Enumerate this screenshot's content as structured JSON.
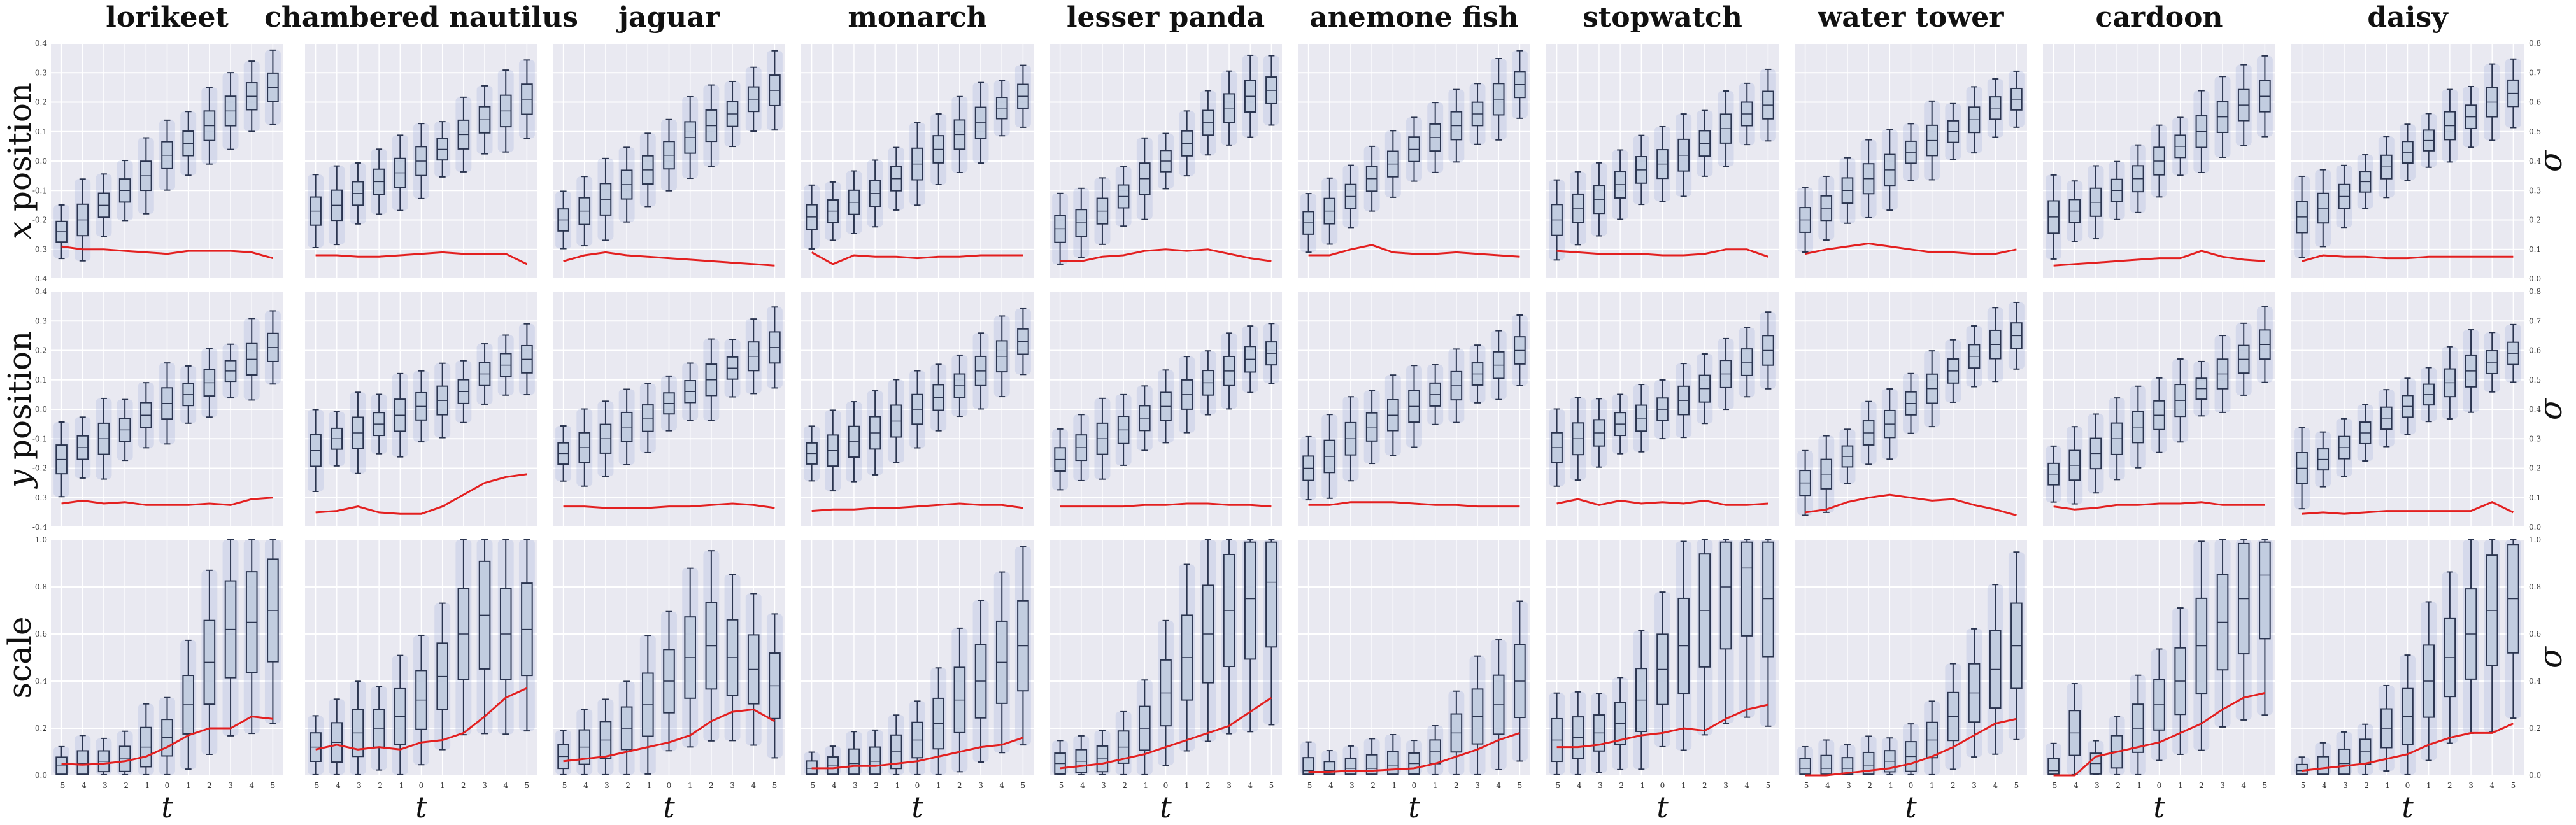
{
  "chart_data": {
    "type": "box",
    "columns": [
      "lorikeet",
      "chambered nautilus",
      "jaguar",
      "monarch",
      "lesser panda",
      "anemone fish",
      "stopwatch",
      "water tower",
      "cardoon",
      "daisy"
    ],
    "row_labels": [
      "x position",
      "y position",
      "scale"
    ],
    "row_label_italic": [
      "x",
      "y",
      ""
    ],
    "xlabel": "t",
    "x": [
      -5,
      -4,
      -3,
      -2,
      -1,
      0,
      1,
      2,
      3,
      4,
      5
    ],
    "right_axis_label": "σ",
    "rows": [
      {
        "name": "x position",
        "ylim": [
          -0.4,
          0.4
        ],
        "yticks": [
          -0.4,
          -0.3,
          -0.2,
          -0.1,
          0.0,
          0.1,
          0.2,
          0.3,
          0.4
        ],
        "sigma_lim": [
          0.0,
          0.8
        ],
        "sigma_ticks": [
          0.0,
          0.1,
          0.2,
          0.3,
          0.4,
          0.5,
          0.6,
          0.7,
          0.8
        ],
        "medians": [
          [
            -0.24,
            -0.2,
            -0.15,
            -0.1,
            -0.05,
            0.02,
            0.06,
            0.12,
            0.17,
            0.22,
            0.25
          ],
          [
            -0.17,
            -0.15,
            -0.11,
            -0.07,
            -0.04,
            0.0,
            0.04,
            0.09,
            0.14,
            0.17,
            0.21
          ],
          [
            -0.2,
            -0.17,
            -0.13,
            -0.08,
            -0.03,
            0.02,
            0.08,
            0.12,
            0.16,
            0.21,
            0.24
          ],
          [
            -0.19,
            -0.17,
            -0.14,
            -0.11,
            -0.06,
            -0.01,
            0.04,
            0.09,
            0.13,
            0.18,
            0.22
          ],
          [
            -0.23,
            -0.21,
            -0.17,
            -0.12,
            -0.06,
            0.0,
            0.06,
            0.13,
            0.18,
            0.22,
            0.24
          ],
          [
            -0.21,
            -0.17,
            -0.12,
            -0.06,
            -0.01,
            0.04,
            0.08,
            0.12,
            0.16,
            0.21,
            0.26
          ],
          [
            -0.2,
            -0.16,
            -0.13,
            -0.08,
            -0.03,
            -0.01,
            0.02,
            0.06,
            0.11,
            0.16,
            0.19
          ],
          [
            -0.2,
            -0.16,
            -0.1,
            -0.06,
            -0.03,
            0.03,
            0.07,
            0.1,
            0.14,
            0.18,
            0.21
          ],
          [
            -0.19,
            -0.17,
            -0.14,
            -0.1,
            -0.06,
            0.0,
            0.05,
            0.1,
            0.15,
            0.19,
            0.22
          ],
          [
            -0.19,
            -0.16,
            -0.12,
            -0.07,
            -0.02,
            0.03,
            0.07,
            0.12,
            0.15,
            0.2,
            0.23
          ]
        ],
        "sigma": [
          [
            0.11,
            0.1,
            0.1,
            0.095,
            0.09,
            0.085,
            0.095,
            0.095,
            0.095,
            0.09,
            0.07
          ],
          [
            0.08,
            0.08,
            0.075,
            0.075,
            0.08,
            0.085,
            0.09,
            0.085,
            0.085,
            0.085,
            0.05
          ],
          [
            0.06,
            0.08,
            0.09,
            0.08,
            0.075,
            0.07,
            0.065,
            0.06,
            0.055,
            0.05,
            0.045
          ],
          [
            0.09,
            0.05,
            0.08,
            0.075,
            0.075,
            0.07,
            0.075,
            0.075,
            0.08,
            0.08,
            0.08
          ],
          [
            0.06,
            0.06,
            0.075,
            0.08,
            0.095,
            0.1,
            0.095,
            0.1,
            0.085,
            0.07,
            0.06
          ],
          [
            0.08,
            0.08,
            0.1,
            0.115,
            0.09,
            0.085,
            0.085,
            0.09,
            0.085,
            0.08,
            0.075
          ],
          [
            0.095,
            0.09,
            0.085,
            0.085,
            0.085,
            0.08,
            0.08,
            0.085,
            0.1,
            0.1,
            0.075
          ],
          [
            0.085,
            0.1,
            0.11,
            0.12,
            0.11,
            0.1,
            0.09,
            0.09,
            0.085,
            0.085,
            0.1
          ],
          [
            0.045,
            0.05,
            0.055,
            0.06,
            0.065,
            0.07,
            0.07,
            0.095,
            0.075,
            0.065,
            0.06
          ],
          [
            0.06,
            0.08,
            0.075,
            0.075,
            0.07,
            0.07,
            0.075,
            0.075,
            0.075,
            0.075,
            0.075
          ]
        ]
      },
      {
        "name": "y position",
        "ylim": [
          -0.4,
          0.4
        ],
        "yticks": [
          -0.4,
          -0.3,
          -0.2,
          -0.1,
          0.0,
          0.1,
          0.2,
          0.3,
          0.4
        ],
        "sigma_lim": [
          0.0,
          0.8
        ],
        "sigma_ticks": [
          0.0,
          0.1,
          0.2,
          0.3,
          0.4,
          0.5,
          0.6,
          0.7,
          0.8
        ],
        "medians": [
          [
            -0.17,
            -0.13,
            -0.1,
            -0.07,
            -0.02,
            0.02,
            0.05,
            0.09,
            0.13,
            0.17,
            0.21
          ],
          [
            -0.14,
            -0.1,
            -0.08,
            -0.05,
            -0.02,
            0.01,
            0.03,
            0.06,
            0.12,
            0.15,
            0.17
          ],
          [
            -0.15,
            -0.13,
            -0.1,
            -0.06,
            -0.03,
            0.02,
            0.06,
            0.1,
            0.14,
            0.18,
            0.21
          ],
          [
            -0.15,
            -0.14,
            -0.11,
            -0.08,
            -0.04,
            0.0,
            0.04,
            0.08,
            0.13,
            0.18,
            0.23
          ],
          [
            -0.17,
            -0.13,
            -0.1,
            -0.07,
            -0.03,
            0.01,
            0.05,
            0.09,
            0.13,
            0.17,
            0.19
          ],
          [
            -0.2,
            -0.16,
            -0.1,
            -0.06,
            -0.02,
            0.01,
            0.05,
            0.08,
            0.12,
            0.15,
            0.2
          ],
          [
            -0.13,
            -0.1,
            -0.08,
            -0.05,
            -0.03,
            0.0,
            0.03,
            0.07,
            0.12,
            0.16,
            0.2
          ],
          [
            -0.25,
            -0.22,
            -0.16,
            -0.08,
            -0.05,
            0.02,
            0.07,
            0.13,
            0.18,
            0.22,
            0.25
          ],
          [
            -0.22,
            -0.19,
            -0.15,
            -0.1,
            -0.06,
            -0.02,
            0.03,
            0.07,
            0.12,
            0.17,
            0.22
          ],
          [
            -0.2,
            -0.17,
            -0.13,
            -0.08,
            -0.03,
            0.01,
            0.05,
            0.09,
            0.13,
            0.16,
            0.19
          ]
        ],
        "sigma": [
          [
            0.08,
            0.09,
            0.08,
            0.085,
            0.075,
            0.075,
            0.075,
            0.08,
            0.075,
            0.095,
            0.1
          ],
          [
            0.05,
            0.055,
            0.07,
            0.05,
            0.045,
            0.045,
            0.07,
            0.11,
            0.15,
            0.17,
            0.18
          ],
          [
            0.07,
            0.07,
            0.065,
            0.065,
            0.065,
            0.07,
            0.07,
            0.075,
            0.08,
            0.075,
            0.065
          ],
          [
            0.055,
            0.06,
            0.06,
            0.065,
            0.065,
            0.07,
            0.075,
            0.08,
            0.075,
            0.075,
            0.065
          ],
          [
            0.07,
            0.07,
            0.07,
            0.07,
            0.075,
            0.075,
            0.08,
            0.08,
            0.075,
            0.075,
            0.07
          ],
          [
            0.075,
            0.075,
            0.085,
            0.085,
            0.085,
            0.08,
            0.075,
            0.075,
            0.07,
            0.07,
            0.07
          ],
          [
            0.08,
            0.095,
            0.075,
            0.09,
            0.08,
            0.085,
            0.08,
            0.09,
            0.075,
            0.075,
            0.08
          ],
          [
            0.05,
            0.06,
            0.085,
            0.1,
            0.11,
            0.1,
            0.09,
            0.095,
            0.075,
            0.06,
            0.04
          ],
          [
            0.07,
            0.06,
            0.065,
            0.075,
            0.075,
            0.08,
            0.08,
            0.085,
            0.075,
            0.075,
            0.075
          ],
          [
            0.045,
            0.05,
            0.045,
            0.05,
            0.055,
            0.055,
            0.055,
            0.055,
            0.055,
            0.085,
            0.05
          ]
        ]
      },
      {
        "name": "scale",
        "ylim": [
          0.0,
          1.0
        ],
        "yticks": [
          0.0,
          0.2,
          0.4,
          0.6,
          0.8,
          1.0
        ],
        "sigma_lim": [
          0.0,
          1.0
        ],
        "sigma_ticks": [
          0.0,
          0.2,
          0.4,
          0.6,
          0.8,
          1.0
        ],
        "medians": [
          [
            0.04,
            0.05,
            0.06,
            0.07,
            0.12,
            0.16,
            0.3,
            0.48,
            0.62,
            0.65,
            0.7
          ],
          [
            0.12,
            0.14,
            0.18,
            0.2,
            0.25,
            0.32,
            0.42,
            0.6,
            0.68,
            0.6,
            0.62
          ],
          [
            0.08,
            0.12,
            0.15,
            0.2,
            0.3,
            0.4,
            0.5,
            0.55,
            0.5,
            0.45,
            0.38
          ],
          [
            0.03,
            0.04,
            0.05,
            0.06,
            0.1,
            0.15,
            0.22,
            0.32,
            0.4,
            0.48,
            0.55
          ],
          [
            0.05,
            0.06,
            0.07,
            0.12,
            0.2,
            0.35,
            0.5,
            0.6,
            0.7,
            0.75,
            0.82
          ],
          [
            0.02,
            0.02,
            0.03,
            0.03,
            0.04,
            0.05,
            0.1,
            0.18,
            0.25,
            0.3,
            0.4
          ],
          [
            0.15,
            0.16,
            0.18,
            0.22,
            0.32,
            0.45,
            0.55,
            0.7,
            0.8,
            0.88,
            0.75
          ],
          [
            0.03,
            0.03,
            0.03,
            0.04,
            0.06,
            0.08,
            0.15,
            0.25,
            0.35,
            0.45,
            0.55
          ],
          [
            0.02,
            0.18,
            0.05,
            0.1,
            0.2,
            0.3,
            0.4,
            0.55,
            0.65,
            0.75,
            0.85
          ],
          [
            0.02,
            0.03,
            0.05,
            0.1,
            0.2,
            0.25,
            0.4,
            0.5,
            0.6,
            0.7,
            0.75
          ]
        ],
        "sigma": [
          [
            0.05,
            0.045,
            0.05,
            0.06,
            0.08,
            0.12,
            0.17,
            0.2,
            0.2,
            0.25,
            0.24
          ],
          [
            0.11,
            0.13,
            0.11,
            0.12,
            0.11,
            0.14,
            0.15,
            0.18,
            0.25,
            0.33,
            0.37
          ],
          [
            0.06,
            0.07,
            0.08,
            0.1,
            0.12,
            0.14,
            0.17,
            0.23,
            0.27,
            0.28,
            0.23
          ],
          [
            0.03,
            0.03,
            0.04,
            0.04,
            0.05,
            0.06,
            0.08,
            0.1,
            0.12,
            0.13,
            0.16
          ],
          [
            0.03,
            0.04,
            0.05,
            0.07,
            0.09,
            0.12,
            0.15,
            0.18,
            0.21,
            0.27,
            0.33
          ],
          [
            0.015,
            0.015,
            0.02,
            0.02,
            0.025,
            0.03,
            0.05,
            0.08,
            0.11,
            0.15,
            0.18
          ],
          [
            0.12,
            0.12,
            0.13,
            0.15,
            0.17,
            0.18,
            0.2,
            0.19,
            0.24,
            0.28,
            0.3
          ],
          [
            0.0,
            0.0,
            0.01,
            0.02,
            0.03,
            0.05,
            0.08,
            0.12,
            0.17,
            0.22,
            0.24
          ],
          [
            0.0,
            0.0,
            0.08,
            0.1,
            0.12,
            0.14,
            0.18,
            0.22,
            0.28,
            0.33,
            0.35
          ],
          [
            0.02,
            0.03,
            0.04,
            0.05,
            0.07,
            0.09,
            0.13,
            0.16,
            0.18,
            0.18,
            0.22
          ]
        ]
      }
    ],
    "grid": true,
    "colors": {
      "panel_background": "#e9e9f1",
      "grid": "#ffffff",
      "box_fill": "#c2cde0",
      "box_edge": "#2b3550",
      "violin": "#8f9ed6",
      "sigma_line": "#e32020"
    }
  }
}
